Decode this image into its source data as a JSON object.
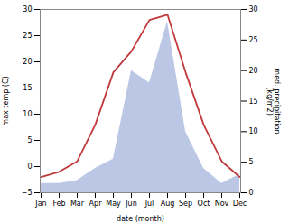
{
  "chart_data": {
    "type": "line",
    "categories": [
      "Jan",
      "Feb",
      "Mar",
      "Apr",
      "May",
      "Jun",
      "Jul",
      "Aug",
      "Sep",
      "Oct",
      "Nov",
      "Dec"
    ],
    "xlabel": "date (month)",
    "ylabel": "max temp (C)",
    "y2label": "med. precipitation\n(kg/m2)",
    "ylim": [
      -5,
      30
    ],
    "yticks": [
      -5,
      0,
      5,
      10,
      15,
      20,
      25,
      30
    ],
    "y2lim": [
      0,
      30
    ],
    "y2ticks": [
      0,
      5,
      10,
      15,
      20,
      25,
      30
    ],
    "grid": false,
    "series": [
      {
        "type": "area",
        "axis": "y2",
        "color": "#b0bde0",
        "values": [
          1.5,
          1.5,
          2,
          4,
          5.5,
          20,
          18,
          28,
          10,
          4,
          1.5,
          3
        ]
      },
      {
        "type": "line",
        "color": "#c0393b",
        "values": [
          -2,
          -1,
          1,
          8,
          18,
          22,
          28,
          29,
          18,
          8,
          1,
          -2
        ]
      }
    ]
  }
}
